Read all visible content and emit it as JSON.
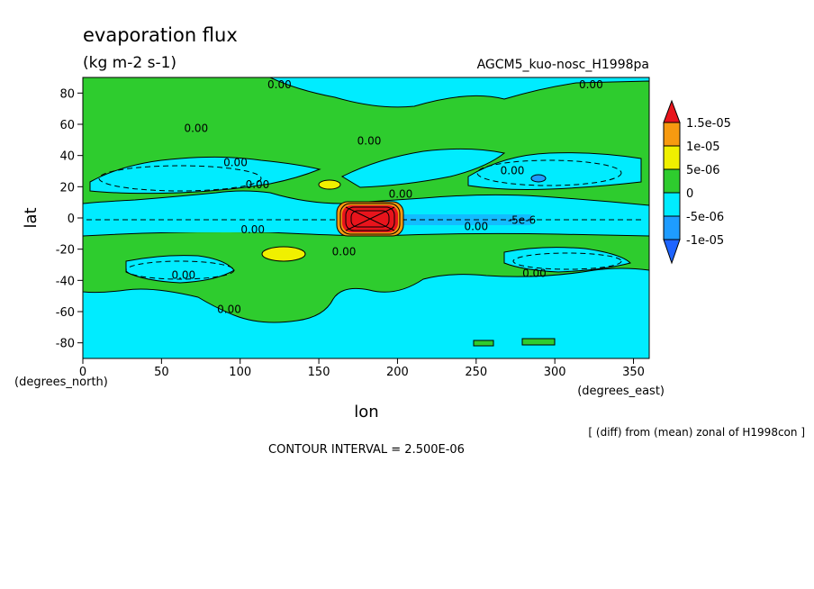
{
  "chart_data": {
    "type": "heatmap",
    "title": "evaporation flux",
    "subtitle": "(kg m-2 s-1)",
    "experiment": "AGCM5_kuo-nosc_H1998pa",
    "xlabel": "lon",
    "ylabel": "lat",
    "x_unit_label": "(degrees_east)",
    "y_unit_label": "(degrees_north)",
    "xlim": [
      0,
      360
    ],
    "ylim": [
      -90,
      90
    ],
    "x_ticks": [
      0,
      50,
      100,
      150,
      200,
      250,
      300,
      350
    ],
    "y_ticks": [
      80,
      60,
      40,
      20,
      0,
      -20,
      -40,
      -60,
      -80
    ],
    "colorbar": {
      "labels": [
        "1.5e-05",
        "1e-05",
        "5e-06",
        "0",
        "-5e-06",
        "-1e-05"
      ],
      "colors": {
        "above_1.5e-05": "#e8141c",
        "1e-05_to_1.5e-05": "#f79a10",
        "5e-06_to_1e-05": "#f0f000",
        "0_to_5e-06": "#2ecc2e",
        "-5e-06_to_0": "#00ecff",
        "-1e-05_to_-5e-06": "#1e9cff",
        "below_-1e-05": "#1e64ff"
      }
    },
    "contour_labels": [
      {
        "text": "0.00",
        "lon": 125,
        "lat": 86
      },
      {
        "text": "0.00",
        "lon": 323,
        "lat": 86
      },
      {
        "text": "0.00",
        "lon": 72,
        "lat": 58
      },
      {
        "text": "0.00",
        "lon": 182,
        "lat": 50
      },
      {
        "text": "0.00",
        "lon": 97,
        "lat": 36
      },
      {
        "text": "0.00",
        "lon": 273,
        "lat": 31
      },
      {
        "text": "0.00",
        "lon": 111,
        "lat": 22
      },
      {
        "text": "0.00",
        "lon": 202,
        "lat": 16
      },
      {
        "text": "0.00",
        "lon": 108,
        "lat": -7
      },
      {
        "text": "0.00",
        "lon": 250,
        "lat": -5
      },
      {
        "text": "-5e-6",
        "lon": 279,
        "lat": -1
      },
      {
        "text": "0.00",
        "lon": 166,
        "lat": -21
      },
      {
        "text": "0.00",
        "lon": 64,
        "lat": -36
      },
      {
        "text": "0.00",
        "lon": 287,
        "lat": -35
      },
      {
        "text": "0.00",
        "lon": 93,
        "lat": -58
      }
    ],
    "annotation": "[ (diff) from (mean) zonal of H1998con ]",
    "contour_interval": "CONTOUR INTERVAL = 2.500E-06"
  }
}
